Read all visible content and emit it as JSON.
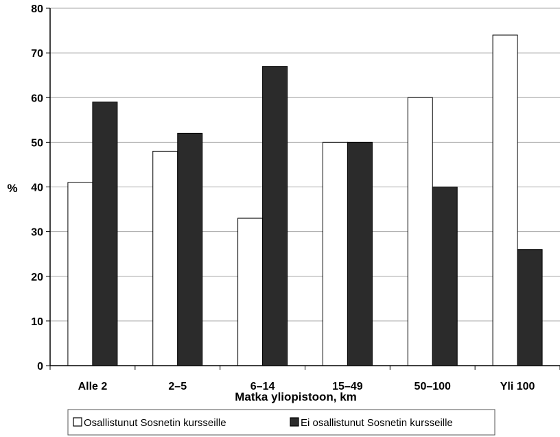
{
  "chart_data": {
    "type": "bar",
    "title": "",
    "xlabel": "Matka yliopistoon, km",
    "ylabel": "%",
    "ylim": [
      0,
      80
    ],
    "yticks": [
      0,
      10,
      20,
      30,
      40,
      50,
      60,
      70,
      80
    ],
    "grid": true,
    "legend_position": "bottom",
    "categories": [
      "Alle 2",
      "2–5",
      "6–14",
      "15–49",
      "50–100",
      "Yli 100"
    ],
    "series": [
      {
        "name": "Osallistunut Sosnetin kursseille",
        "color": "#ffffff",
        "values": [
          41,
          48,
          33,
          50,
          60,
          74
        ]
      },
      {
        "name": "Ei osallistunut Sosnetin kursseille",
        "color": "#2b2b2b",
        "values": [
          59,
          52,
          67,
          50,
          40,
          26
        ]
      }
    ]
  }
}
